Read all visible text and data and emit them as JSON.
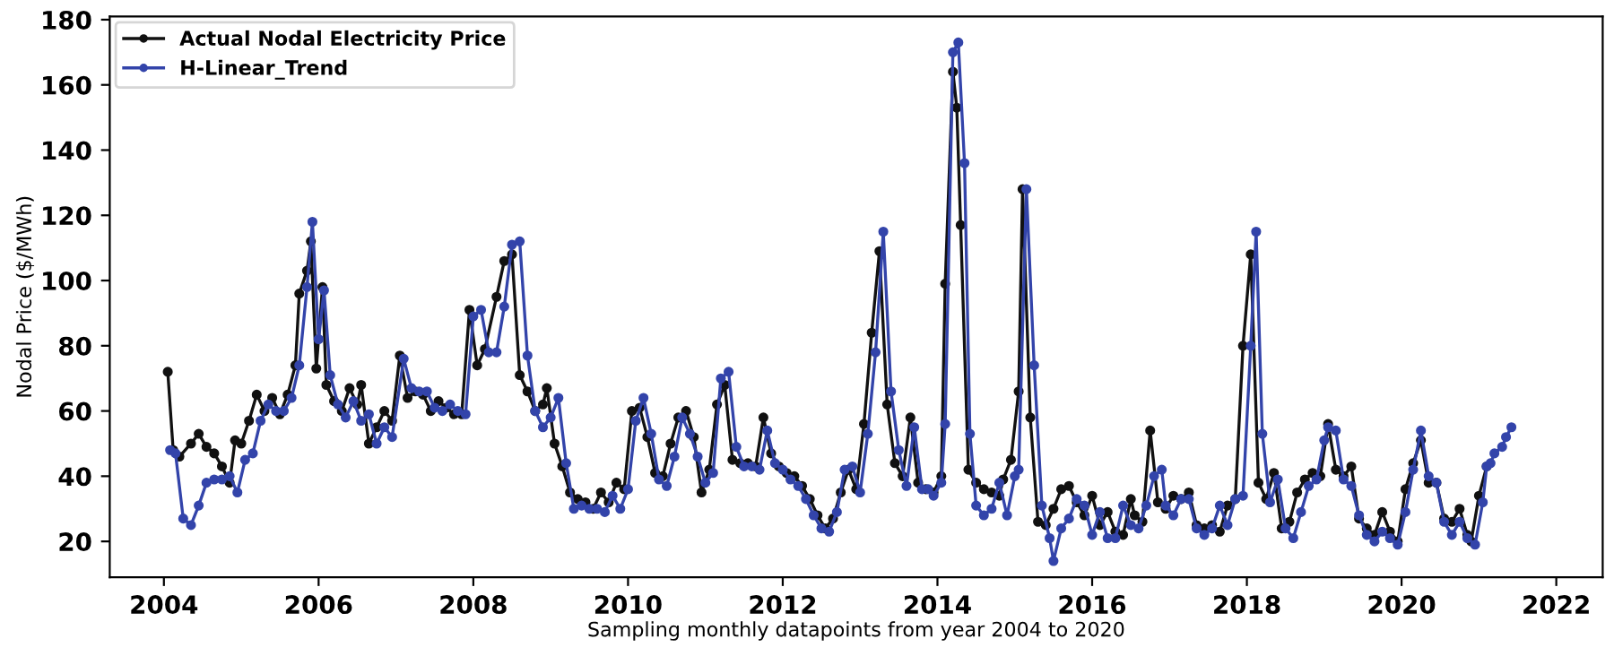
{
  "chart_data": {
    "type": "line",
    "xlabel": "Sampling monthly datapoints from year 2004 to 2020",
    "ylabel": "Nodal Price ($/MWh)",
    "xlim": [
      2003.3,
      2022.6
    ],
    "ylim": [
      9,
      181
    ],
    "xticks": [
      2004,
      2006,
      2008,
      2010,
      2012,
      2014,
      2016,
      2018,
      2020,
      2022
    ],
    "yticks": [
      20,
      40,
      60,
      80,
      100,
      120,
      140,
      160,
      180
    ],
    "grid": false,
    "legend": "top left",
    "marker": "circle",
    "line_style": "solid",
    "series": [
      {
        "name": "Actual Nodal Electricity Price",
        "color": "#111111",
        "x": [
          2004.05,
          2004.12,
          2004.2,
          2004.35,
          2004.45,
          2004.55,
          2004.65,
          2004.75,
          2004.85,
          2004.92,
          2005.0,
          2005.1,
          2005.2,
          2005.3,
          2005.4,
          2005.5,
          2005.6,
          2005.7,
          2005.75,
          2005.85,
          2005.9,
          2005.97,
          2006.05,
          2006.1,
          2006.2,
          2006.3,
          2006.4,
          2006.5,
          2006.55,
          2006.65,
          2006.75,
          2006.85,
          2006.95,
          2007.05,
          2007.15,
          2007.25,
          2007.35,
          2007.45,
          2007.55,
          2007.65,
          2007.75,
          2007.85,
          2007.95,
          2008.05,
          2008.15,
          2008.3,
          2008.4,
          2008.5,
          2008.6,
          2008.7,
          2008.8,
          2008.9,
          2008.95,
          2009.05,
          2009.15,
          2009.25,
          2009.35,
          2009.45,
          2009.55,
          2009.65,
          2009.75,
          2009.85,
          2009.95,
          2010.05,
          2010.15,
          2010.25,
          2010.35,
          2010.45,
          2010.55,
          2010.65,
          2010.75,
          2010.85,
          2010.95,
          2011.05,
          2011.15,
          2011.25,
          2011.35,
          2011.45,
          2011.55,
          2011.65,
          2011.75,
          2011.85,
          2011.95,
          2012.05,
          2012.15,
          2012.25,
          2012.35,
          2012.45,
          2012.55,
          2012.65,
          2012.75,
          2012.85,
          2012.95,
          2013.05,
          2013.15,
          2013.25,
          2013.35,
          2013.45,
          2013.55,
          2013.65,
          2013.75,
          2013.85,
          2013.95,
          2014.05,
          2014.1,
          2014.2,
          2014.25,
          2014.3,
          2014.4,
          2014.5,
          2014.6,
          2014.7,
          2014.8,
          2014.85,
          2014.95,
          2015.05,
          2015.1,
          2015.2,
          2015.3,
          2015.4,
          2015.5,
          2015.6,
          2015.7,
          2015.8,
          2015.9,
          2016.0,
          2016.1,
          2016.2,
          2016.3,
          2016.4,
          2016.5,
          2016.55,
          2016.65,
          2016.75,
          2016.85,
          2016.95,
          2017.05,
          2017.15,
          2017.25,
          2017.35,
          2017.45,
          2017.55,
          2017.65,
          2017.75,
          2017.85,
          2017.95,
          2018.05,
          2018.15,
          2018.25,
          2018.35,
          2018.45,
          2018.55,
          2018.65,
          2018.75,
          2018.85,
          2018.95,
          2019.05,
          2019.15,
          2019.25,
          2019.35,
          2019.45,
          2019.55,
          2019.65,
          2019.75,
          2019.85,
          2019.95,
          2020.05,
          2020.15,
          2020.25,
          2020.35,
          2020.45,
          2020.55,
          2020.65,
          2020.75,
          2020.85,
          2020.9,
          2021.0,
          2021.1
        ],
        "values": [
          72,
          48,
          46,
          50,
          53,
          49,
          47,
          43,
          38,
          51,
          50,
          57,
          65,
          60,
          64,
          59,
          65,
          74,
          96,
          103,
          112,
          73,
          98,
          68,
          63,
          60,
          67,
          62,
          68,
          50,
          55,
          60,
          57,
          77,
          64,
          66,
          65,
          60,
          63,
          61,
          59,
          59,
          91,
          74,
          79,
          95,
          106,
          108,
          71,
          66,
          60,
          62,
          67,
          50,
          43,
          35,
          33,
          32,
          30,
          35,
          32,
          38,
          36,
          60,
          61,
          52,
          41,
          40,
          50,
          58,
          60,
          52,
          35,
          42,
          62,
          68,
          45,
          44,
          44,
          43,
          58,
          47,
          43,
          41,
          40,
          37,
          33,
          28,
          24,
          27,
          35,
          42,
          36,
          56,
          84,
          109,
          62,
          44,
          40,
          58,
          38,
          36,
          35,
          40,
          99,
          164,
          153,
          117,
          42,
          38,
          36,
          35,
          34,
          39,
          45,
          66,
          128,
          58,
          26,
          25,
          30,
          36,
          37,
          32,
          28,
          34,
          25,
          29,
          23,
          22,
          33,
          28,
          26,
          54,
          32,
          30,
          34,
          33,
          35,
          25,
          24,
          25,
          23,
          31,
          33,
          80,
          108,
          38,
          33,
          41,
          24,
          26,
          35,
          39,
          41,
          40,
          56,
          42,
          40,
          43,
          27,
          24,
          22,
          29,
          23,
          20,
          36,
          44,
          51,
          38,
          38,
          27,
          26,
          30,
          22,
          20,
          34,
          43
        ]
      },
      {
        "name": "H-Linear_Trend",
        "color": "#3344aa",
        "x": [
          2004.08,
          2004.15,
          2004.25,
          2004.35,
          2004.45,
          2004.55,
          2004.65,
          2004.75,
          2004.85,
          2004.95,
          2005.05,
          2005.15,
          2005.25,
          2005.35,
          2005.45,
          2005.55,
          2005.65,
          2005.75,
          2005.85,
          2005.92,
          2006.0,
          2006.07,
          2006.15,
          2006.25,
          2006.35,
          2006.45,
          2006.55,
          2006.65,
          2006.75,
          2006.85,
          2006.95,
          2007.1,
          2007.2,
          2007.3,
          2007.4,
          2007.5,
          2007.6,
          2007.7,
          2007.8,
          2007.9,
          2008.0,
          2008.1,
          2008.2,
          2008.3,
          2008.4,
          2008.5,
          2008.6,
          2008.7,
          2008.8,
          2008.9,
          2009.0,
          2009.1,
          2009.2,
          2009.3,
          2009.4,
          2009.5,
          2009.6,
          2009.7,
          2009.8,
          2009.9,
          2010.0,
          2010.1,
          2010.2,
          2010.3,
          2010.4,
          2010.5,
          2010.6,
          2010.7,
          2010.8,
          2010.9,
          2011.0,
          2011.1,
          2011.2,
          2011.3,
          2011.4,
          2011.5,
          2011.6,
          2011.7,
          2011.8,
          2011.9,
          2012.0,
          2012.1,
          2012.2,
          2012.3,
          2012.4,
          2012.5,
          2012.6,
          2012.7,
          2012.8,
          2012.9,
          2013.0,
          2013.1,
          2013.2,
          2013.3,
          2013.4,
          2013.5,
          2013.6,
          2013.7,
          2013.8,
          2013.88,
          2013.95,
          2014.05,
          2014.1,
          2014.2,
          2014.27,
          2014.35,
          2014.42,
          2014.5,
          2014.6,
          2014.7,
          2014.8,
          2014.9,
          2015.0,
          2015.05,
          2015.15,
          2015.25,
          2015.35,
          2015.45,
          2015.5,
          2015.6,
          2015.7,
          2015.8,
          2015.9,
          2016.0,
          2016.1,
          2016.2,
          2016.3,
          2016.4,
          2016.5,
          2016.6,
          2016.7,
          2016.8,
          2016.9,
          2016.95,
          2017.05,
          2017.15,
          2017.25,
          2017.35,
          2017.45,
          2017.55,
          2017.65,
          2017.75,
          2017.85,
          2017.95,
          2018.05,
          2018.12,
          2018.2,
          2018.3,
          2018.4,
          2018.5,
          2018.6,
          2018.7,
          2018.8,
          2018.9,
          2019.0,
          2019.05,
          2019.15,
          2019.25,
          2019.35,
          2019.45,
          2019.55,
          2019.65,
          2019.75,
          2019.85,
          2019.95,
          2020.05,
          2020.15,
          2020.25,
          2020.35,
          2020.45,
          2020.55,
          2020.65,
          2020.75,
          2020.85,
          2020.95,
          2021.05,
          2021.1,
          2021.15,
          2021.2,
          2021.3,
          2021.35,
          2021.42
        ],
        "values": [
          48,
          47,
          27,
          25,
          31,
          38,
          39,
          39,
          40,
          35,
          45,
          47,
          57,
          62,
          60,
          60,
          64,
          74,
          98,
          118,
          82,
          97,
          71,
          62,
          58,
          63,
          57,
          59,
          50,
          55,
          52,
          76,
          67,
          66,
          66,
          61,
          60,
          62,
          60,
          59,
          89,
          91,
          78,
          78,
          92,
          111,
          112,
          77,
          60,
          55,
          58,
          64,
          44,
          30,
          31,
          30,
          30,
          29,
          34,
          30,
          36,
          57,
          64,
          53,
          39,
          37,
          46,
          58,
          53,
          46,
          38,
          41,
          70,
          72,
          49,
          43,
          43,
          42,
          54,
          44,
          42,
          39,
          37,
          33,
          28,
          24,
          23,
          29,
          42,
          43,
          35,
          53,
          78,
          115,
          66,
          48,
          37,
          55,
          36,
          36,
          34,
          38,
          56,
          170,
          173,
          136,
          53,
          31,
          28,
          30,
          38,
          28,
          40,
          42,
          128,
          74,
          31,
          21,
          14,
          24,
          27,
          33,
          31,
          22,
          29,
          21,
          21,
          31,
          25,
          24,
          31,
          40,
          42,
          31,
          28,
          33,
          33,
          24,
          22,
          24,
          31,
          25,
          33,
          34,
          80,
          115,
          53,
          32,
          39,
          24,
          21,
          29,
          37,
          39,
          51,
          55,
          54,
          39,
          37,
          28,
          22,
          20,
          23,
          21,
          19,
          29,
          42,
          54,
          40,
          38,
          26,
          22,
          26,
          21,
          19,
          32,
          43,
          44,
          47,
          49,
          52,
          55
        ]
      }
    ]
  }
}
